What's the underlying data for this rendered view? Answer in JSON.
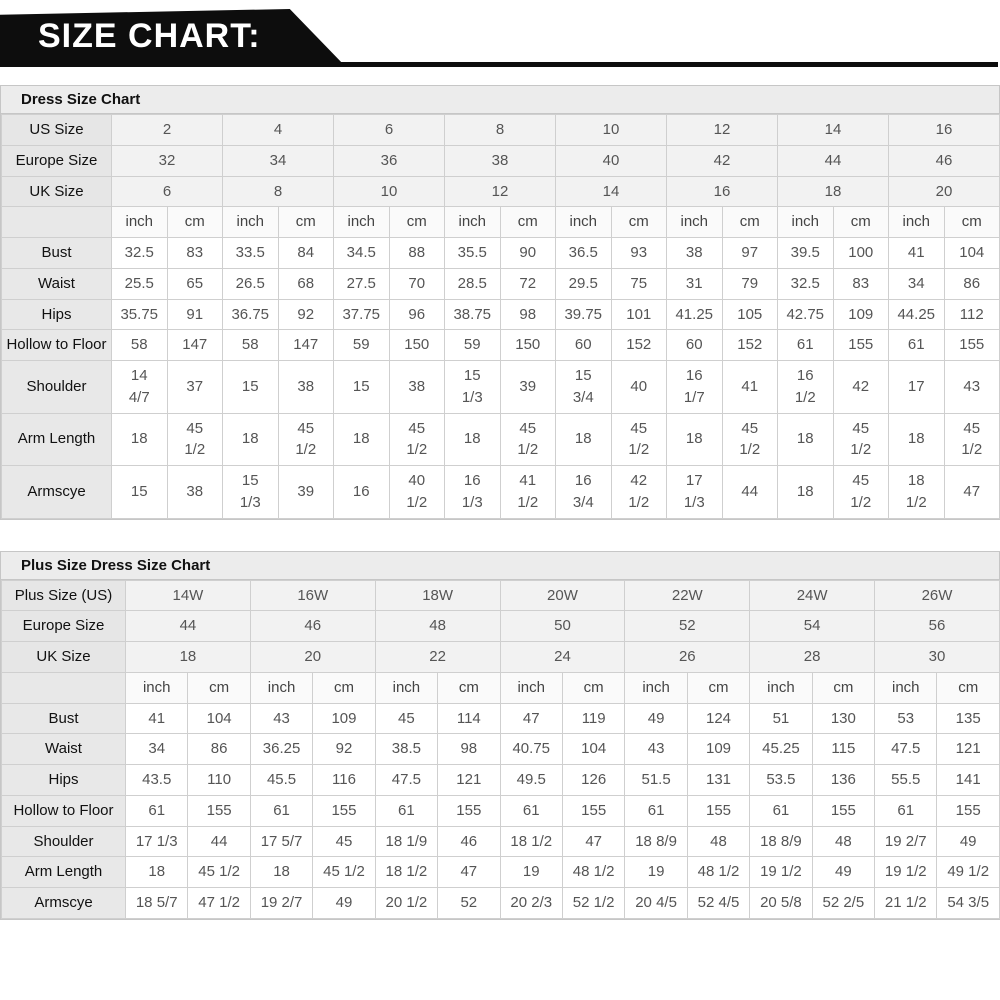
{
  "banner": {
    "title": "SIZE CHART:"
  },
  "tables": [
    {
      "title": "Dress Size Chart",
      "label_col_width": 110,
      "num_sizes": 8,
      "unit_labels": {
        "inch": "inch",
        "cm": "cm"
      },
      "header_rows": [
        {
          "label": "US Size",
          "values": [
            "2",
            "4",
            "6",
            "8",
            "10",
            "12",
            "14",
            "16"
          ]
        },
        {
          "label": "Europe Size",
          "values": [
            "32",
            "34",
            "36",
            "38",
            "40",
            "42",
            "44",
            "46"
          ]
        },
        {
          "label": "UK Size",
          "values": [
            "6",
            "8",
            "10",
            "12",
            "14",
            "16",
            "18",
            "20"
          ]
        }
      ],
      "measure_rows": [
        {
          "label": "Bust",
          "values": [
            "32.5",
            "83",
            "33.5",
            "84",
            "34.5",
            "88",
            "35.5",
            "90",
            "36.5",
            "93",
            "38",
            "97",
            "39.5",
            "100",
            "41",
            "104"
          ]
        },
        {
          "label": "Waist",
          "values": [
            "25.5",
            "65",
            "26.5",
            "68",
            "27.5",
            "70",
            "28.5",
            "72",
            "29.5",
            "75",
            "31",
            "79",
            "32.5",
            "83",
            "34",
            "86"
          ]
        },
        {
          "label": "Hips",
          "values": [
            "35.75",
            "91",
            "36.75",
            "92",
            "37.75",
            "96",
            "38.75",
            "98",
            "39.75",
            "101",
            "41.25",
            "105",
            "42.75",
            "109",
            "44.25",
            "112"
          ]
        },
        {
          "label": "Hollow to Floor",
          "values": [
            "58",
            "147",
            "58",
            "147",
            "59",
            "150",
            "59",
            "150",
            "60",
            "152",
            "60",
            "152",
            "61",
            "155",
            "61",
            "155"
          ]
        },
        {
          "label": "Shoulder",
          "values": [
            "14 4/7",
            "37",
            "15",
            "38",
            "15",
            "38",
            "15 1/3",
            "39",
            "15 3/4",
            "40",
            "16 1/7",
            "41",
            "16 1/2",
            "42",
            "17",
            "43"
          ]
        },
        {
          "label": "Arm Length",
          "values": [
            "18",
            "45 1/2",
            "18",
            "45 1/2",
            "18",
            "45 1/2",
            "18",
            "45 1/2",
            "18",
            "45 1/2",
            "18",
            "45 1/2",
            "18",
            "45 1/2",
            "18",
            "45 1/2"
          ]
        },
        {
          "label": "Armscye",
          "values": [
            "15",
            "38",
            "15 1/3",
            "39",
            "16",
            "40 1/2",
            "16 1/3",
            "41 1/2",
            "16 3/4",
            "42 1/2",
            "17 1/3",
            "44",
            "18",
            "45 1/2",
            "18 1/2",
            "47"
          ]
        }
      ]
    },
    {
      "title": "Plus Size Dress Size Chart",
      "label_col_width": 124,
      "num_sizes": 7,
      "unit_labels": {
        "inch": "inch",
        "cm": "cm"
      },
      "header_rows": [
        {
          "label": "Plus Size (US)",
          "values": [
            "14W",
            "16W",
            "18W",
            "20W",
            "22W",
            "24W",
            "26W"
          ]
        },
        {
          "label": "Europe Size",
          "values": [
            "44",
            "46",
            "48",
            "50",
            "52",
            "54",
            "56"
          ]
        },
        {
          "label": "UK Size",
          "values": [
            "18",
            "20",
            "22",
            "24",
            "26",
            "28",
            "30"
          ]
        }
      ],
      "measure_rows": [
        {
          "label": "Bust",
          "values": [
            "41",
            "104",
            "43",
            "109",
            "45",
            "114",
            "47",
            "119",
            "49",
            "124",
            "51",
            "130",
            "53",
            "135"
          ]
        },
        {
          "label": "Waist",
          "values": [
            "34",
            "86",
            "36.25",
            "92",
            "38.5",
            "98",
            "40.75",
            "104",
            "43",
            "109",
            "45.25",
            "115",
            "47.5",
            "121"
          ]
        },
        {
          "label": "Hips",
          "values": [
            "43.5",
            "110",
            "45.5",
            "116",
            "47.5",
            "121",
            "49.5",
            "126",
            "51.5",
            "131",
            "53.5",
            "136",
            "55.5",
            "141"
          ]
        },
        {
          "label": "Hollow to Floor",
          "values": [
            "61",
            "155",
            "61",
            "155",
            "61",
            "155",
            "61",
            "155",
            "61",
            "155",
            "61",
            "155",
            "61",
            "155"
          ]
        },
        {
          "label": "Shoulder",
          "values": [
            "17 1/3",
            "44",
            "17 5/7",
            "45",
            "18 1/9",
            "46",
            "18 1/2",
            "47",
            "18 8/9",
            "48",
            "18 8/9",
            "48",
            "19 2/7",
            "49"
          ]
        },
        {
          "label": "Arm Length",
          "values": [
            "18",
            "45 1/2",
            "18",
            "45 1/2",
            "18 1/2",
            "47",
            "19",
            "48 1/2",
            "19",
            "48 1/2",
            "19 1/2",
            "49",
            "19 1/2",
            "49 1/2"
          ]
        },
        {
          "label": "Armscye",
          "values": [
            "18 5/7",
            "47 1/2",
            "19 2/7",
            "49",
            "20 1/2",
            "52",
            "20 2/3",
            "52 1/2",
            "20 4/5",
            "52 4/5",
            "20 5/8",
            "52 2/5",
            "21 1/2",
            "54 3/5"
          ]
        }
      ]
    }
  ]
}
